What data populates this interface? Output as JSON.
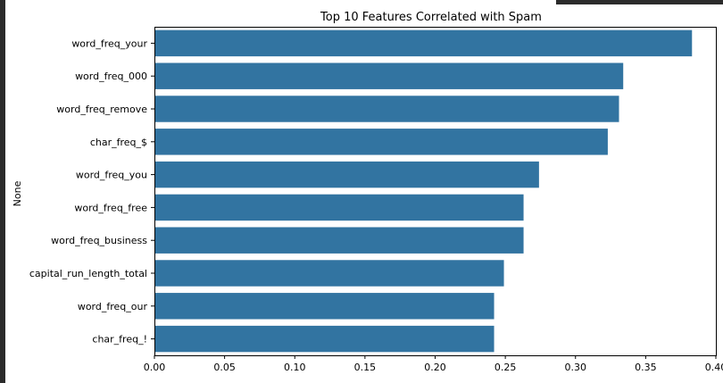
{
  "chart_data": {
    "type": "bar",
    "orientation": "horizontal",
    "title": "Top 10 Features Correlated with Spam",
    "xlabel": "",
    "ylabel": "None",
    "categories": [
      "word_freq_your",
      "word_freq_000",
      "word_freq_remove",
      "char_freq_$",
      "word_freq_you",
      "word_freq_free",
      "word_freq_business",
      "capital_run_length_total",
      "word_freq_our",
      "char_freq_!"
    ],
    "values": [
      0.383,
      0.334,
      0.331,
      0.323,
      0.274,
      0.263,
      0.263,
      0.249,
      0.242,
      0.242
    ],
    "xlim": [
      0,
      0.4
    ],
    "xticks": [
      0.0,
      0.05,
      0.1,
      0.15,
      0.2,
      0.25,
      0.3,
      0.35,
      0.4
    ],
    "xtick_labels": [
      "0.00",
      "0.05",
      "0.10",
      "0.15",
      "0.20",
      "0.25",
      "0.30",
      "0.35",
      "0.40"
    ],
    "bar_color": "#3274a1",
    "grid": false
  }
}
